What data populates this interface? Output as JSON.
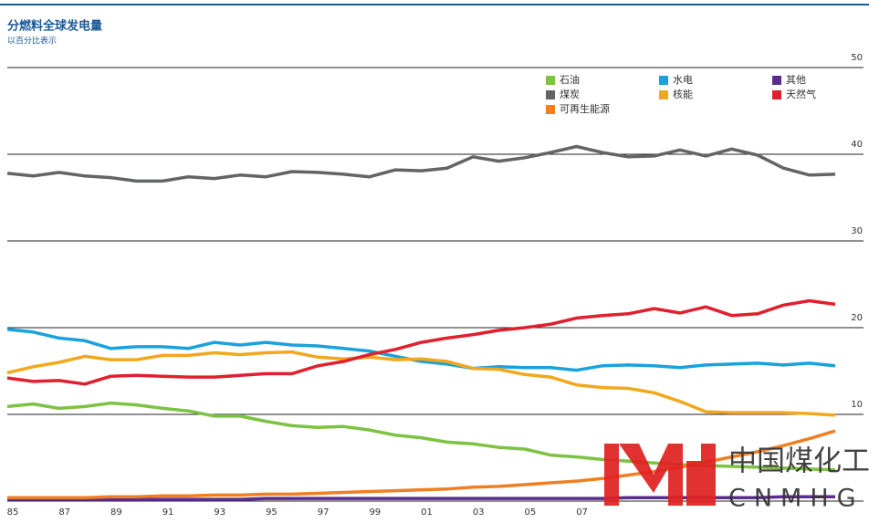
{
  "chart_data": {
    "type": "line",
    "title": "分燃料全球发电量",
    "subtitle": "以百分比表示",
    "categories": [
      "85",
      null,
      "87",
      null,
      "89",
      null,
      "91",
      null,
      "93",
      null,
      "95",
      null,
      "97",
      null,
      "99",
      null,
      "01",
      null,
      "03",
      null,
      "05",
      null,
      "07",
      null,
      null,
      null,
      null,
      null,
      null,
      null,
      null,
      null,
      null
    ],
    "ylim": [
      0,
      50
    ],
    "yticks": [
      10,
      20,
      30,
      40,
      50
    ],
    "grid": true,
    "series": [
      {
        "name": "石油",
        "color": "#7dc242",
        "values": [
          10.9,
          11.2,
          10.7,
          10.9,
          11.3,
          11.1,
          10.7,
          10.4,
          9.8,
          9.8,
          9.2,
          8.7,
          8.5,
          8.6,
          8.2,
          7.6,
          7.3,
          6.8,
          6.6,
          6.2,
          6.0,
          5.3,
          5.1,
          4.8,
          4.6,
          4.4,
          4.2,
          4.1,
          4.0,
          3.9,
          3.8,
          3.7,
          3.6
        ]
      },
      {
        "name": "水电",
        "color": "#1ba1dc",
        "values": [
          19.8,
          19.5,
          18.8,
          18.5,
          17.6,
          17.8,
          17.8,
          17.6,
          18.3,
          18.0,
          18.3,
          18.0,
          17.9,
          17.6,
          17.3,
          16.7,
          16.1,
          15.8,
          15.3,
          15.5,
          15.4,
          15.4,
          15.1,
          15.6,
          15.7,
          15.6,
          15.4,
          15.7,
          15.8,
          15.9,
          15.7,
          15.9,
          15.6
        ]
      },
      {
        "name": "其他",
        "color": "#5b2d8e",
        "values": [
          0.2,
          0.2,
          0.2,
          0.2,
          0.2,
          0.2,
          0.2,
          0.2,
          0.2,
          0.2,
          0.3,
          0.3,
          0.3,
          0.3,
          0.3,
          0.3,
          0.3,
          0.3,
          0.3,
          0.3,
          0.3,
          0.3,
          0.3,
          0.3,
          0.4,
          0.4,
          0.4,
          0.4,
          0.4,
          0.4,
          0.5,
          0.5,
          0.5
        ]
      },
      {
        "name": "煤炭",
        "color": "#636466",
        "values": [
          37.8,
          37.5,
          37.9,
          37.5,
          37.3,
          36.9,
          36.9,
          37.4,
          37.2,
          37.6,
          37.4,
          38.0,
          37.9,
          37.7,
          37.4,
          38.2,
          38.1,
          38.4,
          39.7,
          39.2,
          39.6,
          40.2,
          40.9,
          40.2,
          39.7,
          39.8,
          40.5,
          39.8,
          40.6,
          39.9,
          38.4,
          37.6,
          37.7
        ]
      },
      {
        "name": "核能",
        "color": "#f2a81d",
        "values": [
          14.8,
          15.5,
          16.0,
          16.7,
          16.3,
          16.3,
          16.8,
          16.8,
          17.1,
          16.9,
          17.1,
          17.2,
          16.6,
          16.4,
          16.6,
          16.3,
          16.4,
          16.1,
          15.3,
          15.2,
          14.6,
          14.3,
          13.4,
          13.1,
          13.0,
          12.5,
          11.5,
          10.3,
          10.2,
          10.2,
          10.2,
          10.1,
          9.9
        ]
      },
      {
        "name": "天然气",
        "color": "#e0202e",
        "values": [
          14.2,
          13.8,
          13.9,
          13.5,
          14.4,
          14.5,
          14.4,
          14.3,
          14.3,
          14.5,
          14.7,
          14.7,
          15.6,
          16.1,
          16.9,
          17.5,
          18.3,
          18.8,
          19.2,
          19.7,
          20.0,
          20.4,
          21.1,
          21.4,
          21.6,
          22.2,
          21.7,
          22.4,
          21.4,
          21.6,
          22.6,
          23.1,
          22.7
        ]
      },
      {
        "name": "可再生能源",
        "color": "#ef7f22",
        "values": [
          0.4,
          0.4,
          0.4,
          0.4,
          0.5,
          0.5,
          0.6,
          0.6,
          0.7,
          0.7,
          0.8,
          0.8,
          0.9,
          1.0,
          1.1,
          1.2,
          1.3,
          1.4,
          1.6,
          1.7,
          1.9,
          2.1,
          2.3,
          2.6,
          3.0,
          3.4,
          3.9,
          4.5,
          5.1,
          5.7,
          6.4,
          7.2,
          8.1
        ]
      }
    ]
  },
  "watermark": {
    "text": "中国煤化工",
    "subtext": "CNMHG"
  }
}
